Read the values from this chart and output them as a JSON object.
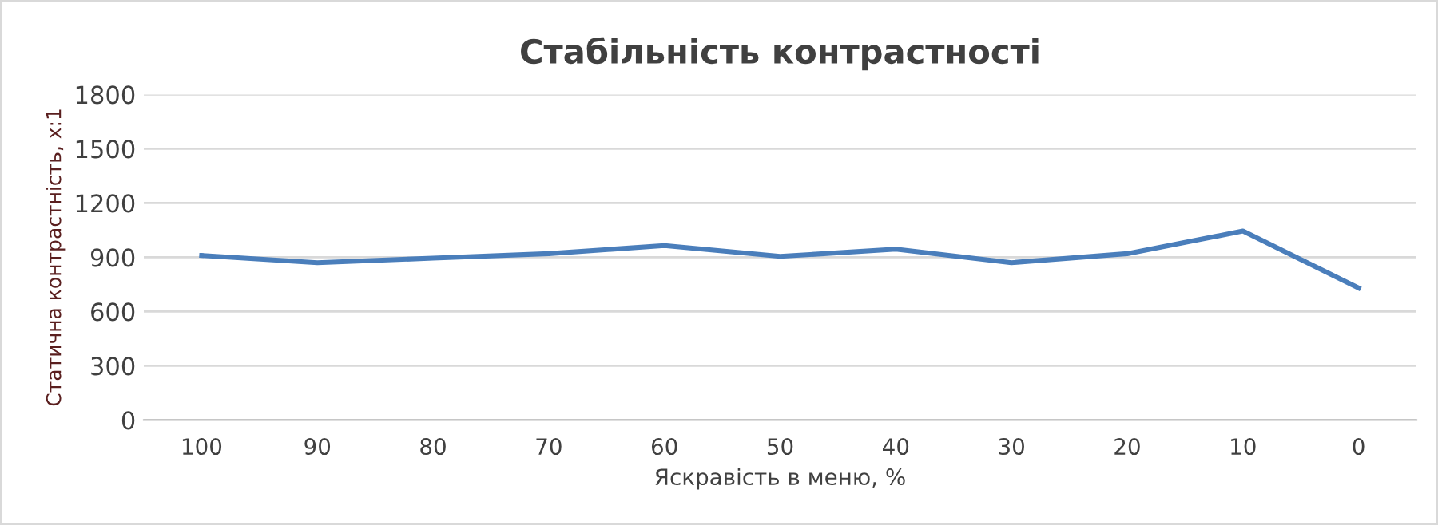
{
  "chart_data": {
    "type": "line",
    "title": "Стабільність контрастності",
    "xlabel": "Яскравість в меню, %",
    "ylabel": "Статична контрастність, x:1",
    "categories": [
      "100",
      "90",
      "80",
      "70",
      "60",
      "50",
      "40",
      "30",
      "20",
      "10",
      "0"
    ],
    "series": [
      {
        "color": "#4a7ebb",
        "values": [
          910,
          870,
          895,
          920,
          965,
          905,
          945,
          870,
          920,
          1045,
          730
        ]
      }
    ],
    "ylim": [
      0,
      1800
    ],
    "yticks": [
      0,
      300,
      600,
      900,
      1200,
      1500,
      1800
    ],
    "grid": "y",
    "legend": false,
    "marker": "none",
    "line_style": "solid"
  }
}
